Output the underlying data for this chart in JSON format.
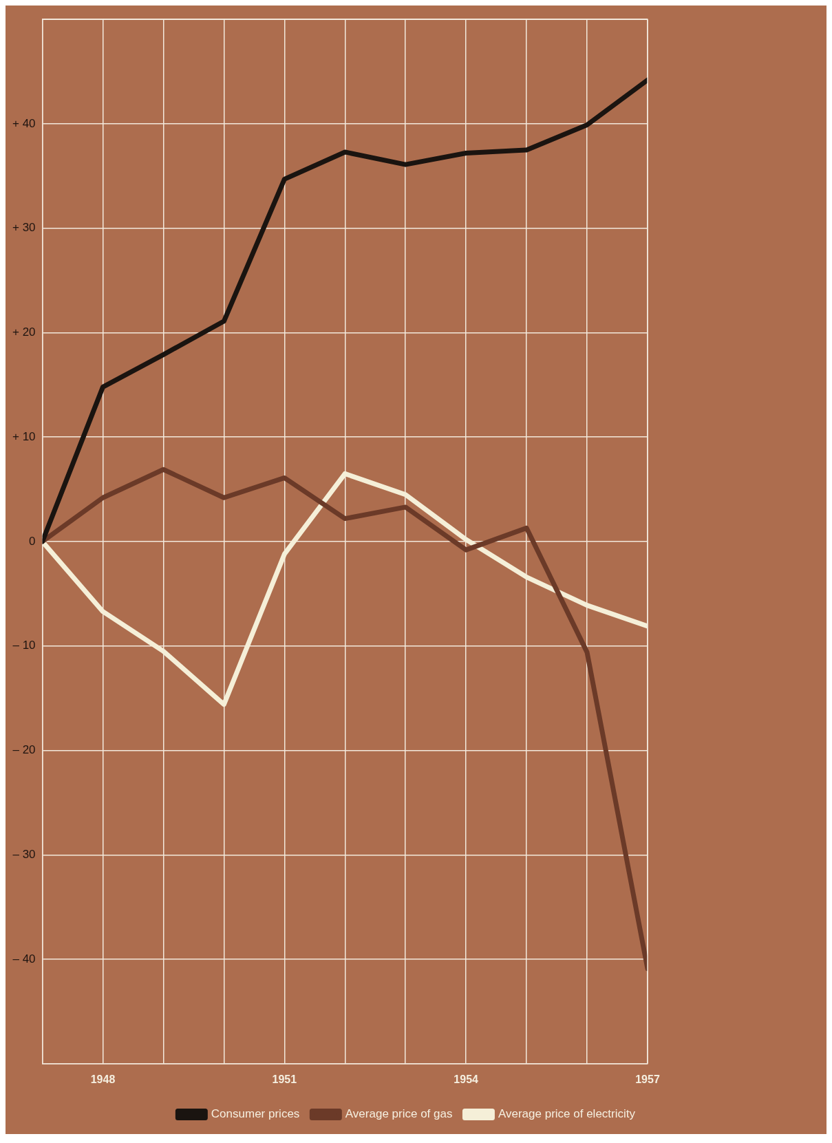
{
  "chart_data": {
    "type": "line",
    "x": [
      1947,
      1948,
      1949,
      1950,
      1951,
      1952,
      1953,
      1954,
      1955,
      1956,
      1957
    ],
    "xlim": [
      1947,
      1957
    ],
    "xticks": [
      {
        "value": 1947,
        "label": null
      },
      1948,
      {
        "value": 1949,
        "label": null
      },
      {
        "value": 1950,
        "label": null
      },
      1951,
      {
        "value": 1952,
        "label": null
      },
      {
        "value": 1953,
        "label": null
      },
      1954,
      {
        "value": 1955,
        "label": null
      },
      {
        "value": 1956,
        "label": null
      },
      1957
    ],
    "ylim": [
      -50,
      50
    ],
    "yticks": [
      {
        "value": -50,
        "label": null
      },
      {
        "value": -40,
        "label": "– 40"
      },
      {
        "value": -30,
        "label": "– 30"
      },
      {
        "value": -20,
        "label": "– 20"
      },
      {
        "value": -10,
        "label": "– 10"
      },
      0,
      {
        "value": 10,
        "label": "+ 10"
      },
      {
        "value": 20,
        "label": "+ 20"
      },
      {
        "value": 30,
        "label": "+ 30"
      },
      {
        "value": 40,
        "label": "+ 40"
      },
      {
        "value": 50,
        "label": null
      }
    ],
    "grid": true,
    "legend": "bottom right",
    "marker": "none",
    "line_style": "solid",
    "series": [
      {
        "name": "Consumer prices",
        "color": "#1a1410",
        "values": [
          0,
          14.8,
          17.9,
          21.1,
          34.7,
          37.3,
          36.1,
          37.2,
          37.5,
          39.9,
          44.2
        ]
      },
      {
        "name": "Average price of gas",
        "color": "#6b3a28",
        "values": [
          0,
          4.2,
          6.9,
          4.2,
          6.1,
          2.2,
          3.3,
          -0.8,
          1.3,
          -10.6,
          -40.9
        ]
      },
      {
        "name": "Average price of electricity",
        "color": "#f5efd8",
        "values": [
          0,
          -6.7,
          -10.5,
          -15.6,
          -1.2,
          6.5,
          4.5,
          0.2,
          -3.4,
          -6.1,
          -8.1
        ]
      }
    ]
  }
}
